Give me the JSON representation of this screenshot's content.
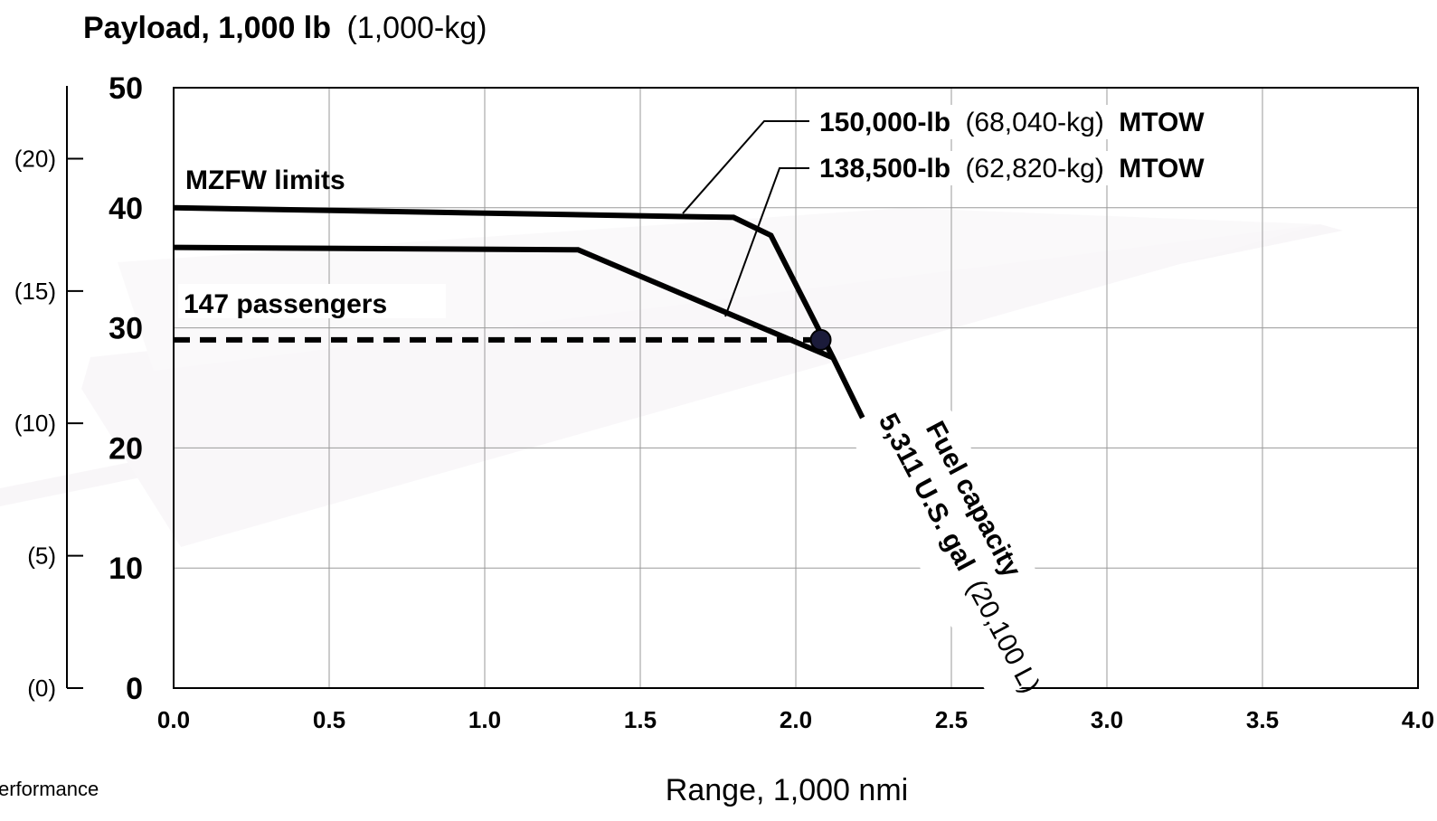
{
  "chart_data": {
    "type": "line",
    "title": "",
    "ylabel_main": "Payload, 1,000 lb",
    "ylabel_unit": "(1,000-kg)",
    "xlabel": "Range, 1,000 nmi",
    "footer_text": "erformance",
    "xlim": [
      0,
      4.0
    ],
    "ylim": [
      0,
      50
    ],
    "x_ticks": [
      "0.0",
      "0.5",
      "1.0",
      "1.5",
      "2.0",
      "2.5",
      "3.0",
      "3.5",
      "4.0"
    ],
    "y_ticks": [
      "0",
      "10",
      "20",
      "30",
      "40",
      "50"
    ],
    "secondary_y_ticks": [
      {
        "label": "(0)",
        "value_lb": 0
      },
      {
        "label": "(5)",
        "value_lb": 11.02
      },
      {
        "label": "(10)",
        "value_lb": 22.05
      },
      {
        "label": "(15)",
        "value_lb": 33.07
      },
      {
        "label": "(20)",
        "value_lb": 44.09
      }
    ],
    "grid": true,
    "series": [
      {
        "name": "150,000-lb (68,040-kg) MTOW",
        "label_bold": "150,000-lb",
        "label_paren": "(68,040-kg)",
        "label_suffix": "MTOW",
        "points": [
          [
            0.0,
            40.0
          ],
          [
            1.8,
            39.2
          ],
          [
            1.92,
            37.7
          ],
          [
            2.12,
            27.5
          ],
          [
            2.64,
            0
          ]
        ]
      },
      {
        "name": "138,500-lb (62,820-kg) MTOW",
        "label_bold": "138,500-lb",
        "label_paren": "(62,820-kg)",
        "label_suffix": "MTOW",
        "points": [
          [
            0.0,
            36.7
          ],
          [
            1.3,
            36.5
          ],
          [
            2.12,
            27.5
          ]
        ]
      }
    ],
    "passenger_line": {
      "label": "147 passengers",
      "y": 29.0,
      "x_end": 2.08
    },
    "passenger_point": {
      "x": 2.08,
      "y": 29.0
    },
    "annotations": {
      "mzfw": "MZFW limits",
      "fuel_line1": "Fuel capacity",
      "fuel_line2_bold": "5,311 U.S. gal",
      "fuel_line2_paren": "(20,100 L)"
    },
    "colors": {
      "line": "#000000",
      "grid": "#9a9a9a",
      "point": "#1b1b3a"
    }
  }
}
